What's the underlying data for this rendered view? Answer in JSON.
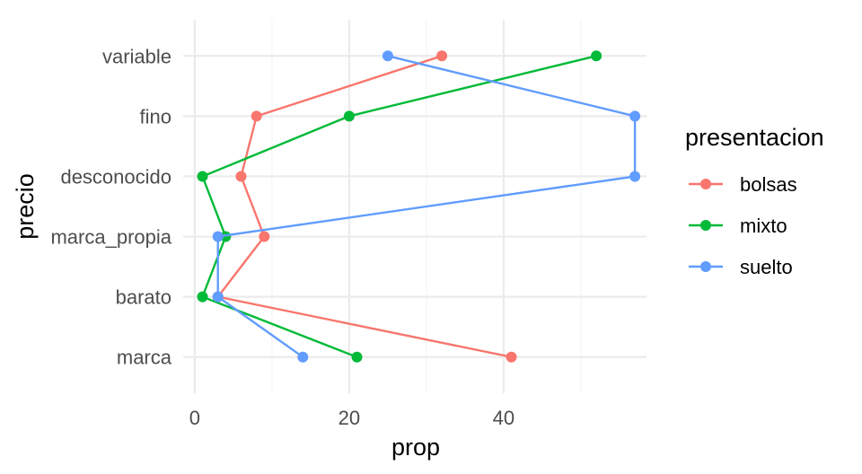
{
  "chart_data": {
    "type": "line",
    "xlabel": "prop",
    "ylabel": "precio",
    "xlim": [
      -1.5,
      58.5
    ],
    "x_ticks": [
      0,
      20,
      40
    ],
    "x_tick_labels": [
      "0",
      "20",
      "40"
    ],
    "categories": [
      "marca",
      "barato",
      "marca_propia",
      "desconocido",
      "fino",
      "variable"
    ],
    "grid": true,
    "legend": {
      "title": "presentacion",
      "position": "right"
    },
    "series": [
      {
        "name": "bolsas",
        "color": "#F8766D",
        "values": [
          41,
          3,
          9,
          6,
          8,
          32
        ]
      },
      {
        "name": "mixto",
        "color": "#00BA38",
        "values": [
          21,
          1,
          4,
          1,
          20,
          52
        ]
      },
      {
        "name": "suelto",
        "color": "#619CFF",
        "values": [
          14,
          3,
          3,
          57,
          57,
          25
        ]
      }
    ],
    "path_order": [
      "variable",
      "fino",
      "desconocido",
      "marca_propia",
      "barato",
      "marca"
    ]
  }
}
